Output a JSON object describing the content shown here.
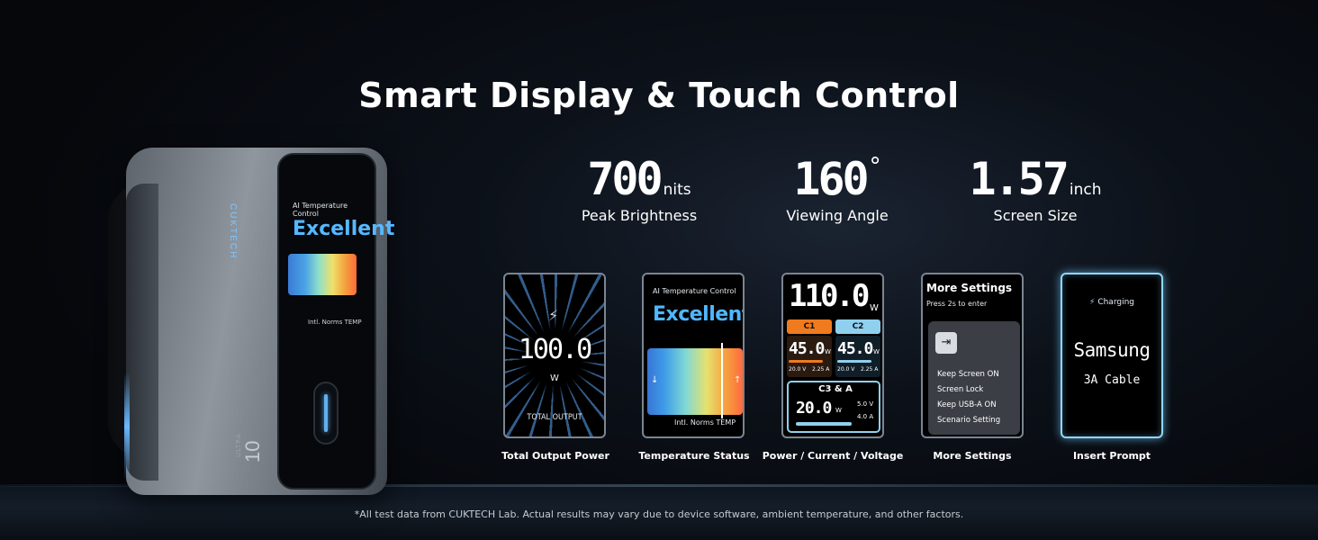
{
  "headline": "Smart Display & Touch Control",
  "device": {
    "brand": "CUKTECH",
    "model": "10",
    "model_sub": "ULTRA",
    "screen_title": "AI Temperature Control",
    "screen_status": "Excellent",
    "screen_footer": "Intl. Norms TEMP"
  },
  "stats": [
    {
      "value": "700",
      "unit": "nits",
      "label": "Peak Brightness"
    },
    {
      "value": "160",
      "unit": "°",
      "label": "Viewing Angle"
    },
    {
      "value": "1.57",
      "unit": "inch",
      "label": "Screen Size"
    }
  ],
  "screens": {
    "total_output": {
      "caption": "Total Output Power",
      "value": "100.0",
      "unit": "W",
      "label": "TOTAL OUTPUT",
      "icon": "lightning-icon"
    },
    "temperature": {
      "caption": "Temperature Status",
      "title": "AI Temperature Control",
      "status": "Excellent",
      "arrow_left": "↓",
      "arrow_right": "↑",
      "footer": "Intl. Norms TEMP"
    },
    "pcv": {
      "caption": "Power / Current / Voltage",
      "total": "110.0",
      "total_unit": "W",
      "c1": {
        "label": "C1",
        "value": "45.0",
        "unit": "W",
        "voltage": "20.0 V",
        "current": "2.25 A",
        "color": "#f07a1e"
      },
      "c2": {
        "label": "C2",
        "value": "45.0",
        "unit": "W",
        "voltage": "20.0 V",
        "current": "2.25 A",
        "color": "#8fd0ef"
      },
      "c3a": {
        "label": "C3 & A",
        "value": "20.0",
        "unit": "W",
        "voltage": "5.0 V",
        "current": "4.0 A"
      }
    },
    "more_settings": {
      "caption": "More Settings",
      "title": "More Settings",
      "subtitle": "Press 2s to enter",
      "icon": "enter-icon",
      "items": [
        "Keep Screen ON",
        "Screen Lock",
        "Keep USB-A ON",
        "Scenario Setting"
      ]
    },
    "insert_prompt": {
      "caption": "Insert Prompt",
      "status": "Charging",
      "brand": "Samsung",
      "cable": "3A Cable",
      "icon": "lightning-icon"
    }
  },
  "footnote": "*All test data from CUKTECH Lab. Actual results may vary due to device software, ambient temperature, and other factors."
}
